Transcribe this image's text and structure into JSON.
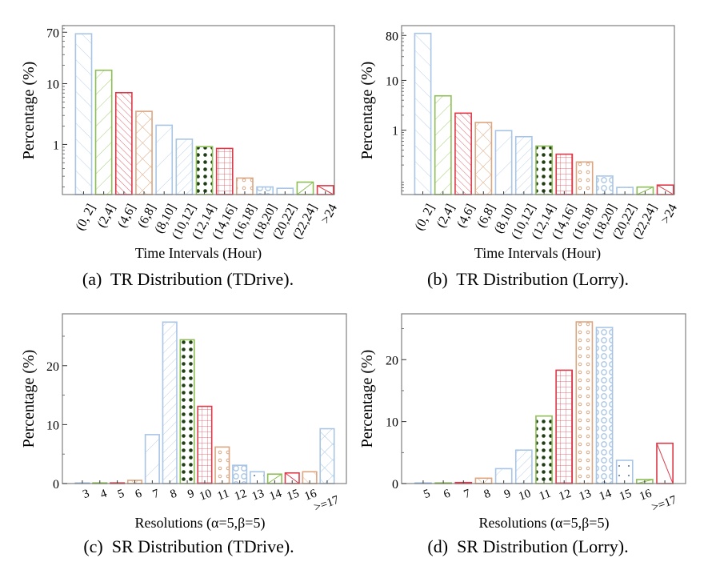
{
  "colors": {
    "blue": "#a9c5e6",
    "green": "#8dbf55",
    "red": "#dc3a48",
    "orange": "#dba680",
    "axis": "#808080"
  },
  "chart_data": [
    {
      "id": "a",
      "type": "bar",
      "caption": "(a)  TR Distribution (TDrive).",
      "xlabel": "Time Intervals (Hour)",
      "ylabel": "Percentage (%)",
      "yscale": "log",
      "ylim": [
        0.15,
        90
      ],
      "yticks": [
        1,
        10,
        70
      ],
      "ytick_labels": [
        "1",
        "10",
        "70"
      ],
      "tick_rotation": -62,
      "categories": [
        "(0, 2]",
        "(2,4]",
        "(4,6]",
        "(6,8]",
        "(8,10]",
        "(10,12]",
        "(12,14]",
        "(14,16]",
        "(16,18]",
        "(18,20]",
        "(20,22]",
        "(22,24]",
        ">24"
      ],
      "values": [
        66,
        16.6,
        7.1,
        3.5,
        2.07,
        1.22,
        0.92,
        0.86,
        0.28,
        0.2,
        0.19,
        0.24,
        0.21
      ],
      "colors": [
        "blue",
        "green",
        "red",
        "orange",
        "blue",
        "blue",
        "green",
        "red",
        "orange",
        "blue",
        "blue",
        "green",
        "red"
      ],
      "patterns": [
        "diag",
        "back",
        "diag-dense",
        "cross",
        "back-sparse",
        "back-dense",
        "stars",
        "grid",
        "circles",
        "rings",
        "dots",
        "single-diag",
        "single-back"
      ]
    },
    {
      "id": "b",
      "type": "bar",
      "caption": "(b)  TR Distribution (Lorry).",
      "xlabel": "Time Intervals (Hour)",
      "ylabel": "Percentage (%)",
      "yscale": "log",
      "ylim": [
        0.051,
        126
      ],
      "yticks": [
        1,
        10,
        80
      ],
      "ytick_labels": [
        "1",
        "10",
        "80"
      ],
      "tick_rotation": -62,
      "categories": [
        "(0, 2]",
        "(2,4]",
        "(4,6]",
        "(6,8]",
        "(8,10]",
        "(10,12]",
        "(12,14]",
        "(14,16]",
        "(16,18]",
        "(18,20]",
        "(20,22]",
        "(22,24]",
        ">24"
      ],
      "values": [
        88,
        4.9,
        2.2,
        1.43,
        0.98,
        0.74,
        0.48,
        0.33,
        0.23,
        0.12,
        0.071,
        0.072,
        0.079
      ],
      "colors": [
        "blue",
        "green",
        "red",
        "orange",
        "blue",
        "blue",
        "green",
        "red",
        "orange",
        "blue",
        "blue",
        "green",
        "red"
      ],
      "patterns": [
        "diag",
        "back",
        "diag-dense",
        "cross",
        "back-sparse",
        "back-dense",
        "stars",
        "grid",
        "circles",
        "rings",
        "dots",
        "single-diag",
        "single-back"
      ]
    },
    {
      "id": "c",
      "type": "bar",
      "caption": "(c)  SR Distribution (TDrive).",
      "xlabel": "Resolutions (α=5,β=5)",
      "ylabel": "Percentage (%)",
      "yscale": "linear",
      "ylim": [
        0,
        28.8
      ],
      "yticks": [
        0,
        10,
        20
      ],
      "ytick_labels": [
        "0",
        "10",
        "20"
      ],
      "tick_rotation": -20,
      "categories": [
        "3",
        "4",
        "5",
        "6",
        "7",
        "8",
        "9",
        "10",
        "11",
        "12",
        "13",
        "14",
        "15",
        "16",
        ">=17"
      ],
      "values": [
        0.05,
        0.05,
        0.05,
        0.54,
        8.3,
        27.4,
        24.4,
        13.1,
        6.2,
        3.1,
        2.0,
        1.6,
        1.8,
        2.0,
        9.3
      ],
      "colors": [
        "blue",
        "green",
        "red",
        "orange",
        "blue",
        "blue",
        "green",
        "red",
        "orange",
        "blue",
        "blue",
        "green",
        "red",
        "orange",
        "blue"
      ],
      "patterns": [
        "diag",
        "back",
        "diag-dense",
        "cross",
        "back-sparse",
        "back-dense",
        "stars",
        "grid",
        "circles",
        "rings",
        "dots",
        "single-diag",
        "single-back",
        "diag",
        "cross"
      ]
    },
    {
      "id": "d",
      "type": "bar",
      "caption": "(d)  SR Distribution (Lorry).",
      "xlabel": "Resolutions (α=5,β=5)",
      "ylabel": "Percentage (%)",
      "yscale": "linear",
      "ylim": [
        0,
        27.4
      ],
      "yticks": [
        0,
        10,
        20
      ],
      "ytick_labels": [
        "0",
        "10",
        "20"
      ],
      "tick_rotation": -20,
      "categories": [
        "5",
        "6",
        "7",
        "8",
        "9",
        "10",
        "11",
        "12",
        "13",
        "14",
        "15",
        "16",
        ">=17"
      ],
      "values": [
        0.02,
        0.05,
        0.17,
        0.86,
        2.4,
        5.4,
        10.9,
        18.3,
        26.1,
        25.2,
        3.75,
        0.65,
        6.5
      ],
      "colors": [
        "blue",
        "green",
        "red",
        "orange",
        "blue",
        "blue",
        "green",
        "red",
        "orange",
        "blue",
        "blue",
        "green",
        "red"
      ],
      "patterns": [
        "diag",
        "back",
        "diag-dense",
        "cross",
        "back-sparse",
        "back-dense",
        "stars",
        "grid",
        "circles",
        "rings",
        "dots",
        "single-diag",
        "single-back"
      ]
    }
  ]
}
